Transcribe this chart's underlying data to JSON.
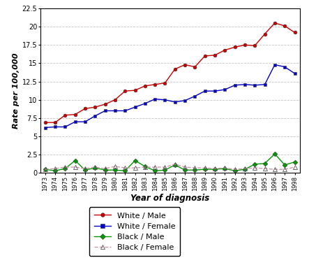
{
  "years": [
    1973,
    1974,
    1975,
    1976,
    1977,
    1978,
    1979,
    1980,
    1981,
    1982,
    1983,
    1984,
    1985,
    1986,
    1987,
    1988,
    1989,
    1990,
    1991,
    1992,
    1993,
    1994,
    1995,
    1996,
    1997,
    1998
  ],
  "white_male": [
    6.9,
    6.9,
    7.9,
    8.0,
    8.8,
    9.0,
    9.4,
    10.0,
    11.2,
    11.3,
    11.9,
    12.1,
    12.3,
    14.2,
    14.8,
    14.5,
    16.0,
    16.1,
    16.8,
    17.2,
    17.5,
    17.4,
    19.0,
    20.5,
    20.1,
    19.2
  ],
  "white_female": [
    6.2,
    6.3,
    6.3,
    7.0,
    7.0,
    7.8,
    8.5,
    8.5,
    8.5,
    9.0,
    9.5,
    10.1,
    10.0,
    9.7,
    9.9,
    10.5,
    11.2,
    11.2,
    11.4,
    12.0,
    12.1,
    12.0,
    12.1,
    14.8,
    14.5,
    13.6
  ],
  "black_male": [
    0.5,
    0.3,
    0.6,
    1.7,
    0.4,
    0.7,
    0.4,
    0.4,
    0.3,
    1.7,
    0.9,
    0.3,
    0.4,
    1.1,
    0.4,
    0.4,
    0.5,
    0.5,
    0.6,
    0.3,
    0.5,
    1.2,
    1.3,
    2.6,
    1.1,
    1.5
  ],
  "black_female": [
    0.5,
    0.6,
    0.8,
    0.8,
    0.6,
    0.8,
    0.6,
    0.9,
    0.7,
    0.7,
    0.8,
    0.8,
    0.8,
    1.2,
    0.8,
    0.7,
    0.7,
    0.6,
    0.7,
    0.5,
    0.6,
    0.7,
    0.6,
    0.5,
    0.5,
    0.8
  ],
  "white_male_color": "#cc0000",
  "white_female_color": "#0000cc",
  "black_male_color": "#009900",
  "black_female_color": "#cc99aa",
  "xlabel": "Year of diagnosis",
  "ylabel": "Rate per 100,000",
  "ylim": [
    0,
    22.5
  ],
  "yticks": [
    0,
    2.5,
    5.0,
    7.5,
    10.0,
    12.5,
    15.0,
    17.5,
    20.0,
    22.5
  ],
  "legend_labels": [
    "White / Male",
    "White / Female",
    "Black / Male",
    "Black / Female"
  ]
}
